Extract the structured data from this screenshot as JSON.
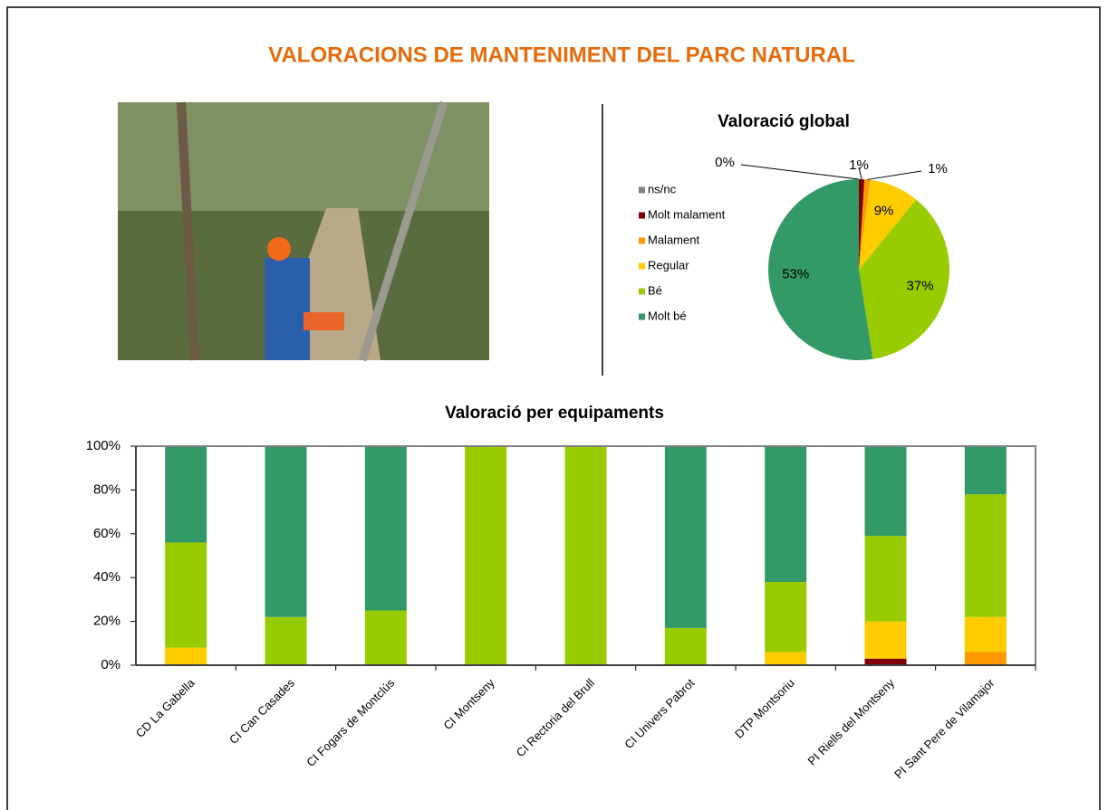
{
  "title": "VALORACIONS DE MANTENIMENT DEL PARC NATURAL",
  "chart_data": [
    {
      "type": "pie",
      "title": "Valoració global",
      "categories": [
        "ns/nc",
        "Molt malament",
        "Malament",
        "Regular",
        "Bé",
        "Molt bé"
      ],
      "values": [
        0,
        1,
        1,
        9,
        37,
        53
      ],
      "value_labels": [
        "0%",
        "1%",
        "1%",
        "9%",
        "37%",
        "53%"
      ],
      "colors": [
        "#808080",
        "#800000",
        "#ff9900",
        "#ffcc00",
        "#99cc00",
        "#339966"
      ],
      "legend": "left"
    },
    {
      "type": "stacked-bar",
      "title": "Valoració per equipaments",
      "categories": [
        "CD La Gabella",
        "CI Can Casades",
        "CI Fogars de Montclús",
        "CI Montseny",
        "CI Rectoria del Brull",
        "CI Univers Pabrot",
        "DTP Montsoriu",
        "PI Riells del Montseny",
        "PI Sant Pere de Vilamajor"
      ],
      "series": [
        {
          "color": "#800000",
          "values": [
            0,
            0,
            0,
            0,
            0,
            0,
            0,
            3,
            0
          ]
        },
        {
          "color": "#ff9900",
          "values": [
            0,
            0,
            0,
            0,
            0,
            0,
            0,
            0,
            6
          ]
        },
        {
          "color": "#ffcc00",
          "values": [
            8,
            0,
            0,
            0,
            0,
            0,
            6,
            17,
            16
          ]
        },
        {
          "color": "#99cc00",
          "values": [
            48,
            22,
            25,
            100,
            100,
            17,
            32,
            39,
            56
          ]
        },
        {
          "color": "#339966",
          "values": [
            44,
            78,
            75,
            0,
            0,
            83,
            62,
            41,
            22
          ]
        }
      ],
      "ylim": [
        0,
        100
      ],
      "yticks": [
        {
          "value": 0,
          "label": "0%"
        },
        {
          "value": 20,
          "label": "20%"
        },
        {
          "value": 40,
          "label": "40%"
        },
        {
          "value": 60,
          "label": "60%"
        },
        {
          "value": 80,
          "label": "80%"
        },
        {
          "value": 100,
          "label": "100%"
        }
      ]
    }
  ]
}
